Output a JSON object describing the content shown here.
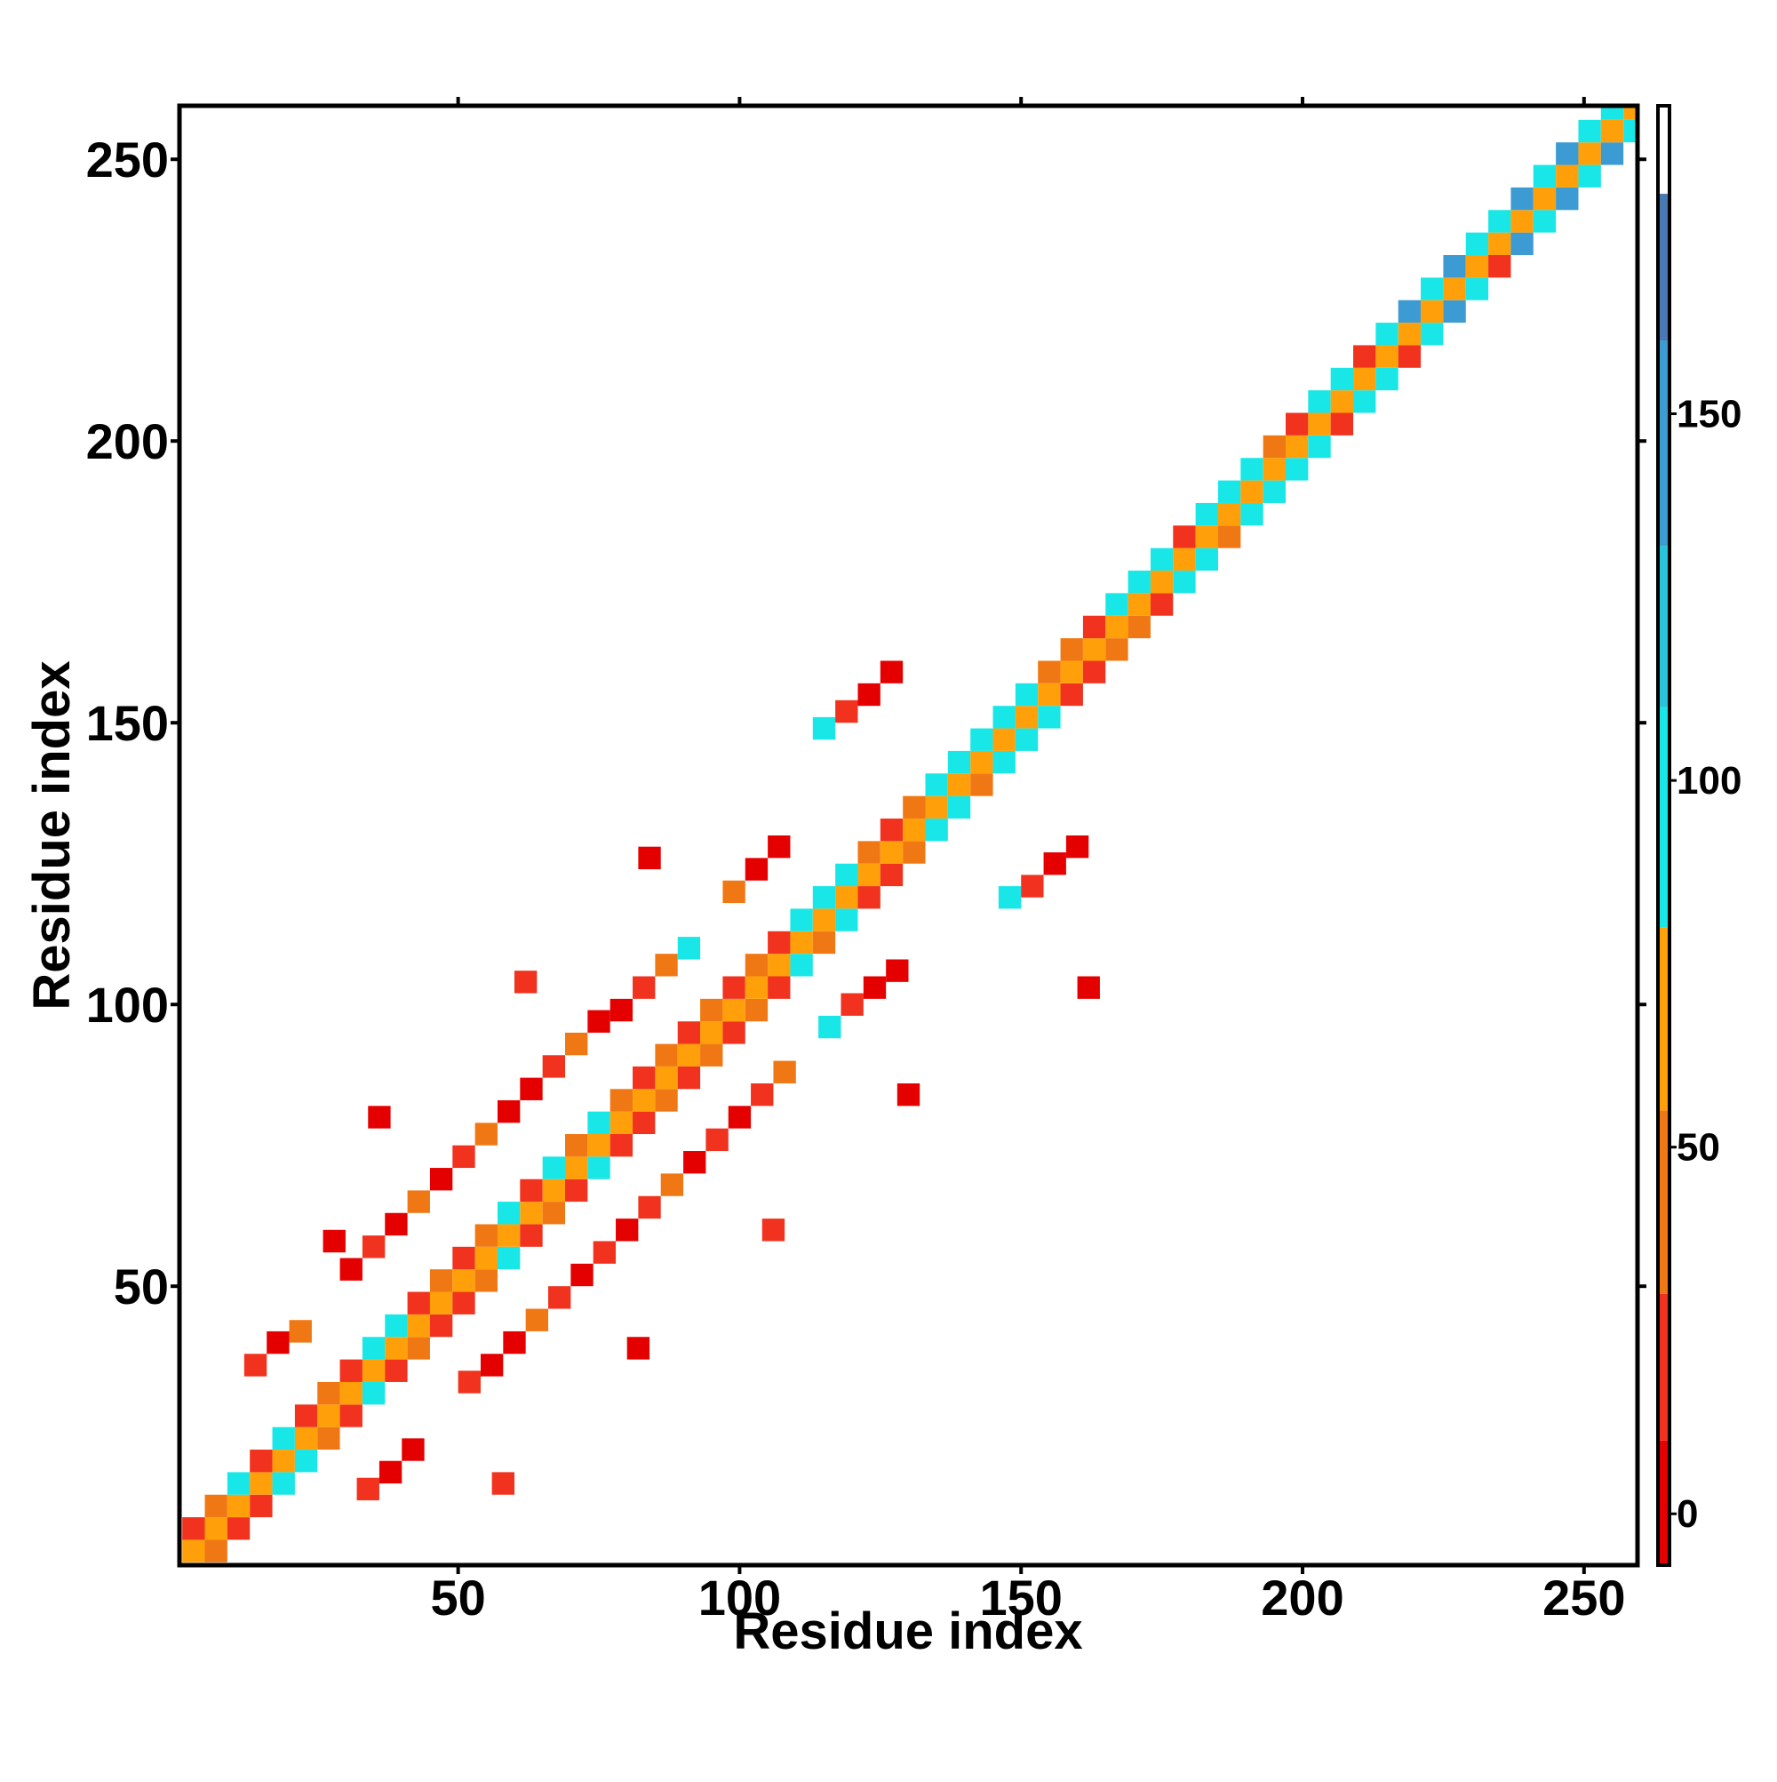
{
  "chart_data": {
    "type": "heatmap",
    "x_label": "Residue index",
    "y_label": "Residue index",
    "xlim": [
      0.5,
      259.5
    ],
    "ylim": [
      0.5,
      259.5
    ],
    "xticks": [
      50,
      100,
      150,
      200,
      250
    ],
    "yticks": [
      50,
      100,
      150,
      200,
      250
    ],
    "cell_size": 4,
    "colorbar": {
      "lim": [
        -7,
        192
      ],
      "ticks": [
        0,
        50,
        100,
        150
      ],
      "colors": [
        {
          "from": -7,
          "to": 10,
          "color": "#e50000"
        },
        {
          "from": 10,
          "to": 30,
          "color": "#f0321e"
        },
        {
          "from": 30,
          "to": 55,
          "color": "#f07814"
        },
        {
          "from": 55,
          "to": 80,
          "color": "#ffa00a"
        },
        {
          "from": 80,
          "to": 110,
          "color": "#19e6e6"
        },
        {
          "from": 110,
          "to": 132,
          "color": "#2ac3dc"
        },
        {
          "from": 132,
          "to": 160,
          "color": "#3c9bd2"
        },
        {
          "from": 160,
          "to": 180,
          "color": "#4a78b4"
        },
        {
          "from": 180,
          "to": 192,
          "color": "#ffffff"
        }
      ]
    },
    "cells": [
      [
        1,
        1,
        60
      ],
      [
        1,
        5,
        20
      ],
      [
        5,
        1,
        45
      ],
      [
        5,
        5,
        60
      ],
      [
        5,
        9,
        45
      ],
      [
        9,
        5,
        20
      ],
      [
        9,
        9,
        60
      ],
      [
        9,
        13,
        95
      ],
      [
        13,
        9,
        20
      ],
      [
        13,
        13,
        60
      ],
      [
        13,
        17,
        20
      ],
      [
        17,
        13,
        95
      ],
      [
        17,
        17,
        60
      ],
      [
        17,
        21,
        95
      ],
      [
        21,
        17,
        95
      ],
      [
        21,
        21,
        60
      ],
      [
        21,
        25,
        20
      ],
      [
        25,
        21,
        45
      ],
      [
        25,
        25,
        60
      ],
      [
        25,
        29,
        45
      ],
      [
        29,
        25,
        20
      ],
      [
        29,
        29,
        60
      ],
      [
        29,
        33,
        20
      ],
      [
        33,
        29,
        95
      ],
      [
        33,
        33,
        60
      ],
      [
        33,
        37,
        95
      ],
      [
        37,
        33,
        20
      ],
      [
        37,
        37,
        60
      ],
      [
        37,
        41,
        95
      ],
      [
        41,
        37,
        45
      ],
      [
        41,
        41,
        60
      ],
      [
        41,
        45,
        20
      ],
      [
        45,
        41,
        20
      ],
      [
        45,
        45,
        60
      ],
      [
        45,
        49,
        45
      ],
      [
        49,
        45,
        20
      ],
      [
        49,
        49,
        60
      ],
      [
        49,
        53,
        20
      ],
      [
        53,
        49,
        45
      ],
      [
        53,
        53,
        60
      ],
      [
        53,
        57,
        45
      ],
      [
        57,
        53,
        95
      ],
      [
        57,
        57,
        60
      ],
      [
        57,
        61,
        95
      ],
      [
        61,
        57,
        20
      ],
      [
        61,
        61,
        60
      ],
      [
        61,
        65,
        20
      ],
      [
        65,
        61,
        45
      ],
      [
        65,
        65,
        60
      ],
      [
        65,
        69,
        95
      ],
      [
        69,
        65,
        20
      ],
      [
        69,
        69,
        60
      ],
      [
        69,
        73,
        45
      ],
      [
        73,
        69,
        95
      ],
      [
        73,
        73,
        60
      ],
      [
        73,
        77,
        95
      ],
      [
        77,
        73,
        20
      ],
      [
        77,
        77,
        60
      ],
      [
        77,
        81,
        45
      ],
      [
        81,
        77,
        20
      ],
      [
        81,
        81,
        60
      ],
      [
        81,
        85,
        20
      ],
      [
        85,
        81,
        45
      ],
      [
        85,
        85,
        60
      ],
      [
        85,
        89,
        45
      ],
      [
        89,
        85,
        20
      ],
      [
        89,
        89,
        60
      ],
      [
        89,
        93,
        20
      ],
      [
        93,
        89,
        45
      ],
      [
        93,
        93,
        60
      ],
      [
        93,
        97,
        45
      ],
      [
        97,
        93,
        20
      ],
      [
        97,
        97,
        60
      ],
      [
        97,
        101,
        20
      ],
      [
        101,
        97,
        45
      ],
      [
        101,
        101,
        60
      ],
      [
        101,
        105,
        45
      ],
      [
        105,
        101,
        20
      ],
      [
        105,
        105,
        60
      ],
      [
        105,
        109,
        20
      ],
      [
        109,
        105,
        95
      ],
      [
        109,
        109,
        60
      ],
      [
        109,
        113,
        95
      ],
      [
        113,
        109,
        45
      ],
      [
        113,
        113,
        60
      ],
      [
        113,
        117,
        95
      ],
      [
        117,
        113,
        95
      ],
      [
        117,
        117,
        60
      ],
      [
        117,
        121,
        95
      ],
      [
        121,
        117,
        20
      ],
      [
        121,
        121,
        60
      ],
      [
        121,
        125,
        45
      ],
      [
        125,
        121,
        20
      ],
      [
        125,
        125,
        60
      ],
      [
        125,
        129,
        20
      ],
      [
        129,
        125,
        45
      ],
      [
        129,
        129,
        60
      ],
      [
        129,
        133,
        45
      ],
      [
        133,
        129,
        95
      ],
      [
        133,
        133,
        60
      ],
      [
        133,
        137,
        95
      ],
      [
        137,
        133,
        95
      ],
      [
        137,
        137,
        60
      ],
      [
        137,
        141,
        95
      ],
      [
        141,
        137,
        45
      ],
      [
        141,
        141,
        60
      ],
      [
        141,
        145,
        95
      ],
      [
        145,
        141,
        95
      ],
      [
        145,
        145,
        60
      ],
      [
        145,
        149,
        95
      ],
      [
        149,
        145,
        95
      ],
      [
        149,
        149,
        60
      ],
      [
        149,
        153,
        95
      ],
      [
        153,
        149,
        95
      ],
      [
        153,
        153,
        60
      ],
      [
        153,
        157,
        45
      ],
      [
        157,
        153,
        20
      ],
      [
        157,
        157,
        60
      ],
      [
        157,
        161,
        45
      ],
      [
        161,
        157,
        20
      ],
      [
        161,
        161,
        60
      ],
      [
        161,
        165,
        20
      ],
      [
        165,
        161,
        45
      ],
      [
        165,
        165,
        60
      ],
      [
        165,
        169,
        95
      ],
      [
        169,
        165,
        45
      ],
      [
        169,
        169,
        60
      ],
      [
        169,
        173,
        95
      ],
      [
        173,
        169,
        20
      ],
      [
        173,
        173,
        60
      ],
      [
        173,
        177,
        95
      ],
      [
        177,
        173,
        95
      ],
      [
        177,
        177,
        60
      ],
      [
        177,
        181,
        20
      ],
      [
        181,
        177,
        95
      ],
      [
        181,
        181,
        60
      ],
      [
        181,
        185,
        95
      ],
      [
        185,
        181,
        45
      ],
      [
        185,
        185,
        60
      ],
      [
        185,
        189,
        95
      ],
      [
        189,
        185,
        95
      ],
      [
        189,
        189,
        60
      ],
      [
        189,
        193,
        95
      ],
      [
        193,
        189,
        95
      ],
      [
        193,
        193,
        60
      ],
      [
        193,
        197,
        45
      ],
      [
        197,
        193,
        95
      ],
      [
        197,
        197,
        60
      ],
      [
        197,
        201,
        20
      ],
      [
        201,
        197,
        95
      ],
      [
        201,
        201,
        60
      ],
      [
        201,
        205,
        95
      ],
      [
        205,
        201,
        20
      ],
      [
        205,
        205,
        60
      ],
      [
        205,
        209,
        95
      ],
      [
        209,
        205,
        95
      ],
      [
        209,
        209,
        60
      ],
      [
        209,
        213,
        20
      ],
      [
        213,
        209,
        95
      ],
      [
        213,
        213,
        60
      ],
      [
        213,
        217,
        95
      ],
      [
        217,
        213,
        20
      ],
      [
        217,
        217,
        60
      ],
      [
        217,
        221,
        140
      ],
      [
        221,
        217,
        95
      ],
      [
        221,
        221,
        60
      ],
      [
        221,
        225,
        95
      ],
      [
        225,
        221,
        140
      ],
      [
        225,
        225,
        60
      ],
      [
        225,
        229,
        140
      ],
      [
        229,
        225,
        95
      ],
      [
        229,
        229,
        60
      ],
      [
        229,
        233,
        95
      ],
      [
        233,
        229,
        20
      ],
      [
        233,
        233,
        60
      ],
      [
        233,
        237,
        95
      ],
      [
        237,
        233,
        140
      ],
      [
        237,
        237,
        60
      ],
      [
        237,
        241,
        140
      ],
      [
        241,
        237,
        95
      ],
      [
        241,
        241,
        60
      ],
      [
        241,
        245,
        95
      ],
      [
        245,
        241,
        140
      ],
      [
        245,
        245,
        60
      ],
      [
        245,
        249,
        140
      ],
      [
        249,
        245,
        95
      ],
      [
        249,
        249,
        60
      ],
      [
        249,
        253,
        95
      ],
      [
        253,
        249,
        140
      ],
      [
        253,
        253,
        60
      ],
      [
        253,
        257,
        95
      ],
      [
        257,
        253,
        95
      ],
      [
        257,
        257,
        60
      ],
      [
        29,
        51,
        10
      ],
      [
        33,
        55,
        20
      ],
      [
        37,
        59,
        10
      ],
      [
        41,
        63,
        45
      ],
      [
        45,
        67,
        10
      ],
      [
        49,
        71,
        20
      ],
      [
        53,
        75,
        45
      ],
      [
        57,
        79,
        10
      ],
      [
        61,
        83,
        10
      ],
      [
        65,
        87,
        20
      ],
      [
        69,
        91,
        45
      ],
      [
        73,
        95,
        10
      ],
      [
        77,
        97,
        10
      ],
      [
        81,
        101,
        20
      ],
      [
        85,
        105,
        45
      ],
      [
        89,
        108,
        95
      ],
      [
        97,
        118,
        45
      ],
      [
        101,
        122,
        10
      ],
      [
        105,
        126,
        10
      ],
      [
        113,
        147,
        95
      ],
      [
        117,
        150,
        20
      ],
      [
        121,
        153,
        10
      ],
      [
        125,
        157,
        10
      ],
      [
        50,
        31,
        20
      ],
      [
        54,
        34,
        10
      ],
      [
        58,
        38,
        10
      ],
      [
        62,
        42,
        45
      ],
      [
        66,
        46,
        20
      ],
      [
        70,
        50,
        10
      ],
      [
        74,
        54,
        20
      ],
      [
        78,
        58,
        10
      ],
      [
        82,
        62,
        20
      ],
      [
        86,
        66,
        45
      ],
      [
        90,
        70,
        10
      ],
      [
        94,
        74,
        20
      ],
      [
        98,
        78,
        10
      ],
      [
        102,
        82,
        20
      ],
      [
        106,
        86,
        45
      ],
      [
        114,
        94,
        95
      ],
      [
        118,
        98,
        20
      ],
      [
        122,
        101,
        10
      ],
      [
        126,
        104,
        10
      ],
      [
        146,
        117,
        95
      ],
      [
        150,
        119,
        20
      ],
      [
        154,
        123,
        10
      ],
      [
        158,
        126,
        10
      ],
      [
        12,
        34,
        20
      ],
      [
        16,
        38,
        10
      ],
      [
        20,
        40,
        45
      ],
      [
        32,
        12,
        20
      ],
      [
        36,
        15,
        10
      ],
      [
        40,
        19,
        10
      ],
      [
        34,
        78,
        10
      ],
      [
        60,
        102,
        20
      ],
      [
        82,
        124,
        10
      ],
      [
        160,
        101,
        10
      ],
      [
        128,
        82,
        10
      ],
      [
        80,
        37,
        10
      ],
      [
        104,
        58,
        20
      ],
      [
        26,
        56,
        10
      ],
      [
        56,
        13,
        20
      ]
    ]
  }
}
